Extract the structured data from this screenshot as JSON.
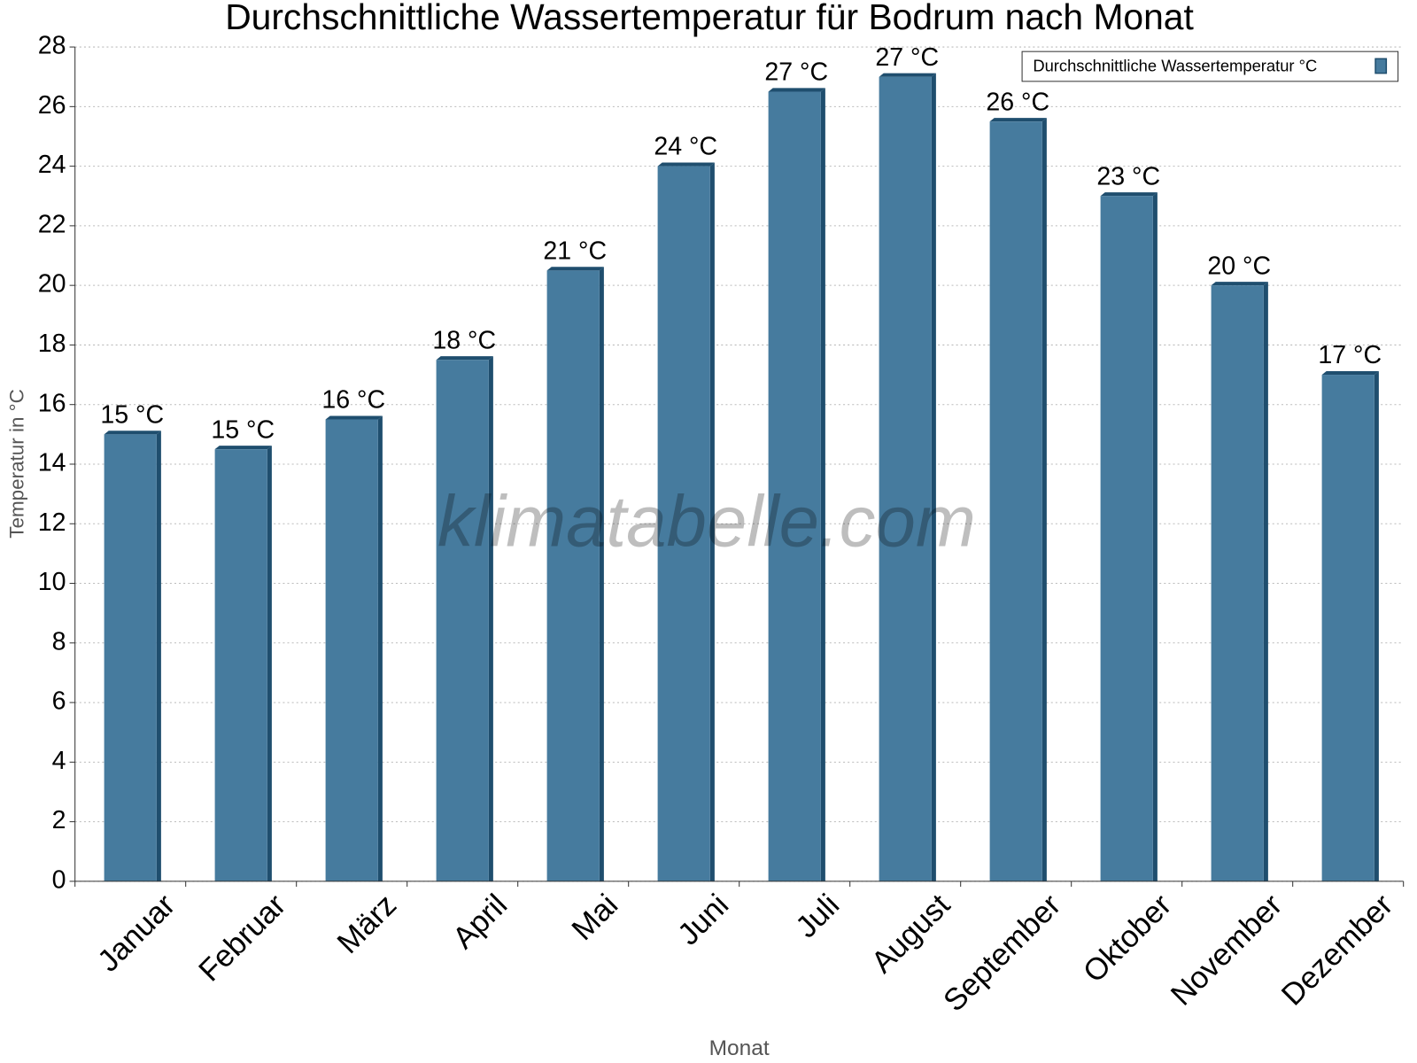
{
  "chart_data": {
    "type": "bar",
    "title": "Durchschnittliche Wassertemperatur für Bodrum nach Monat",
    "x_label": "Monat",
    "y_label": "Temperatur in °C",
    "watermark": "klimatabelle.com",
    "categories": [
      "Januar",
      "Februar",
      "März",
      "April",
      "Mai",
      "Juni",
      "Juli",
      "August",
      "September",
      "Oktober",
      "November",
      "Dezember"
    ],
    "series": [
      {
        "name": "Durchschnittliche Wassertemperatur °C",
        "color": "#467b9e",
        "values": [
          15.0,
          14.5,
          15.5,
          17.5,
          20.5,
          24.0,
          26.5,
          27.0,
          25.5,
          23.0,
          20.0,
          17.0
        ],
        "value_labels": [
          "15 °C",
          "15 °C",
          "16 °C",
          "18 °C",
          "21 °C",
          "24 °C",
          "27 °C",
          "27 °C",
          "26 °C",
          "23 °C",
          "20 °C",
          "17 °C"
        ]
      }
    ],
    "ylim": [
      0,
      28
    ],
    "yticks": [
      0,
      2,
      4,
      6,
      8,
      10,
      12,
      14,
      16,
      18,
      20,
      22,
      24,
      26,
      28
    ],
    "grid": true,
    "legend": "top-right"
  }
}
